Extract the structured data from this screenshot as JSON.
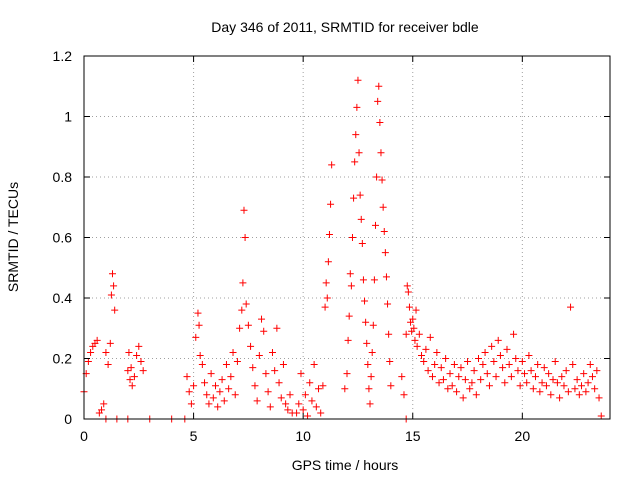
{
  "chart_data": {
    "type": "scatter",
    "title": "Day 346 of 2011, SRMTID for receiver bdle",
    "xlabel": "GPS time / hours",
    "ylabel": "SRMTID / TECUs",
    "xlim": [
      0,
      24
    ],
    "ylim": [
      0,
      1.2
    ],
    "grid": true,
    "marker": "+",
    "color": "#ff0000",
    "xticks": [
      0,
      5,
      10,
      15,
      20
    ],
    "xtick_labels": [
      "0",
      "5",
      "10",
      "15",
      "20"
    ],
    "yticks": [
      0,
      0.2,
      0.4,
      0.6,
      0.8,
      1.0,
      1.2
    ],
    "ytick_labels": [
      "0",
      "0.2",
      "0.4",
      "0.6",
      "0.8",
      "1",
      "1.2"
    ],
    "x": [
      0.0,
      0.1,
      0.2,
      0.3,
      0.4,
      0.5,
      0.6,
      0.7,
      0.8,
      0.9,
      1.0,
      1.1,
      1.2,
      1.25,
      1.3,
      1.35,
      1.4,
      2.0,
      2.05,
      2.1,
      2.15,
      2.2,
      2.3,
      2.4,
      2.5,
      2.6,
      2.7,
      1.0,
      1.5,
      2.0,
      3.0,
      4.0,
      4.6,
      14.7,
      4.7,
      4.8,
      4.9,
      5.0,
      5.1,
      5.2,
      5.25,
      5.3,
      5.4,
      5.5,
      5.6,
      5.7,
      5.8,
      5.9,
      6.0,
      6.1,
      6.2,
      6.3,
      6.4,
      6.5,
      6.6,
      6.7,
      6.8,
      6.9,
      7.0,
      7.1,
      7.2,
      7.25,
      7.3,
      7.35,
      7.4,
      7.5,
      7.6,
      7.7,
      7.8,
      7.9,
      8.0,
      8.1,
      8.2,
      8.3,
      8.4,
      8.5,
      8.6,
      8.7,
      8.8,
      8.9,
      9.0,
      9.1,
      9.2,
      9.3,
      9.4,
      9.5,
      9.7,
      9.8,
      9.9,
      10.0,
      10.1,
      10.2,
      10.3,
      10.4,
      10.5,
      10.6,
      10.7,
      10.8,
      10.9,
      11.0,
      11.05,
      11.1,
      11.15,
      11.2,
      11.25,
      11.3,
      11.9,
      12.0,
      12.05,
      12.1,
      12.15,
      12.2,
      12.25,
      12.3,
      12.35,
      12.4,
      12.45,
      12.5,
      12.55,
      12.6,
      12.65,
      12.7,
      12.75,
      12.8,
      12.85,
      12.9,
      12.95,
      13.0,
      13.05,
      13.1,
      13.15,
      13.2,
      13.25,
      13.3,
      13.35,
      13.4,
      13.45,
      13.5,
      13.55,
      13.6,
      13.65,
      13.7,
      13.75,
      13.8,
      13.85,
      13.9,
      13.95,
      14.0,
      14.5,
      14.6,
      14.7,
      14.75,
      14.8,
      14.85,
      14.9,
      14.95,
      15.0,
      15.05,
      15.1,
      15.15,
      15.2,
      15.3,
      15.4,
      15.5,
      15.6,
      15.7,
      15.8,
      15.9,
      16.0,
      16.1,
      16.2,
      16.3,
      16.4,
      16.5,
      16.6,
      16.7,
      16.8,
      16.9,
      17.0,
      17.1,
      17.2,
      17.3,
      17.4,
      17.5,
      17.6,
      17.7,
      17.8,
      17.9,
      18.0,
      18.1,
      18.2,
      18.3,
      18.4,
      18.5,
      18.6,
      18.7,
      18.8,
      18.9,
      19.0,
      19.1,
      19.2,
      19.3,
      19.4,
      19.5,
      19.6,
      19.7,
      19.8,
      19.9,
      20.0,
      20.1,
      20.2,
      20.3,
      20.4,
      20.5,
      20.6,
      20.7,
      20.8,
      20.9,
      21.0,
      21.1,
      21.2,
      21.3,
      21.4,
      21.5,
      21.6,
      21.7,
      21.8,
      21.9,
      22.0,
      22.1,
      22.2,
      22.3,
      22.4,
      22.5,
      22.6,
      22.7,
      22.8,
      22.9,
      23.0,
      23.1,
      23.2,
      23.3,
      23.4,
      23.5,
      23.6
    ],
    "y": [
      0.09,
      0.15,
      0.19,
      0.22,
      0.24,
      0.25,
      0.26,
      0.02,
      0.03,
      0.05,
      0.22,
      0.18,
      0.25,
      0.41,
      0.48,
      0.44,
      0.36,
      0.16,
      0.22,
      0.13,
      0.17,
      0.11,
      0.14,
      0.21,
      0.24,
      0.19,
      0.16,
      0.0,
      0.0,
      0.0,
      0.0,
      0.0,
      0.0,
      0.0,
      0.14,
      0.09,
      0.05,
      0.11,
      0.27,
      0.35,
      0.31,
      0.21,
      0.18,
      0.12,
      0.08,
      0.05,
      0.15,
      0.07,
      0.11,
      0.04,
      0.09,
      0.13,
      0.06,
      0.18,
      0.1,
      0.14,
      0.22,
      0.08,
      0.19,
      0.3,
      0.36,
      0.45,
      0.69,
      0.6,
      0.38,
      0.31,
      0.24,
      0.17,
      0.11,
      0.06,
      0.21,
      0.33,
      0.29,
      0.15,
      0.09,
      0.04,
      0.22,
      0.16,
      0.3,
      0.12,
      0.07,
      0.18,
      0.05,
      0.03,
      0.08,
      0.02,
      0.02,
      0.05,
      0.15,
      0.03,
      0.08,
      0.01,
      0.12,
      0.06,
      0.18,
      0.04,
      0.1,
      0.02,
      0.11,
      0.37,
      0.45,
      0.4,
      0.52,
      0.61,
      0.71,
      0.84,
      0.1,
      0.15,
      0.26,
      0.34,
      0.48,
      0.44,
      0.6,
      0.73,
      0.85,
      0.94,
      1.03,
      1.12,
      0.88,
      0.74,
      0.66,
      0.58,
      0.46,
      0.39,
      0.32,
      0.25,
      0.18,
      0.1,
      0.05,
      0.14,
      0.22,
      0.31,
      0.46,
      0.64,
      0.8,
      1.05,
      1.1,
      0.98,
      0.88,
      0.79,
      0.7,
      0.62,
      0.55,
      0.47,
      0.38,
      0.28,
      0.19,
      0.11,
      0.14,
      0.08,
      0.28,
      0.44,
      0.42,
      0.37,
      0.32,
      0.29,
      0.33,
      0.3,
      0.26,
      0.36,
      0.24,
      0.28,
      0.21,
      0.19,
      0.23,
      0.16,
      0.27,
      0.14,
      0.18,
      0.22,
      0.12,
      0.17,
      0.13,
      0.2,
      0.1,
      0.15,
      0.11,
      0.18,
      0.09,
      0.14,
      0.17,
      0.07,
      0.13,
      0.19,
      0.1,
      0.12,
      0.16,
      0.08,
      0.2,
      0.13,
      0.18,
      0.22,
      0.15,
      0.11,
      0.24,
      0.19,
      0.14,
      0.26,
      0.21,
      0.17,
      0.12,
      0.23,
      0.18,
      0.14,
      0.28,
      0.2,
      0.16,
      0.11,
      0.19,
      0.15,
      0.12,
      0.21,
      0.16,
      0.1,
      0.14,
      0.18,
      0.09,
      0.12,
      0.17,
      0.11,
      0.15,
      0.08,
      0.13,
      0.19,
      0.12,
      0.07,
      0.14,
      0.11,
      0.16,
      0.09,
      0.37,
      0.18,
      0.1,
      0.13,
      0.08,
      0.11,
      0.15,
      0.09,
      0.12,
      0.18,
      0.14,
      0.1,
      0.16,
      0.07,
      0.01
    ]
  }
}
